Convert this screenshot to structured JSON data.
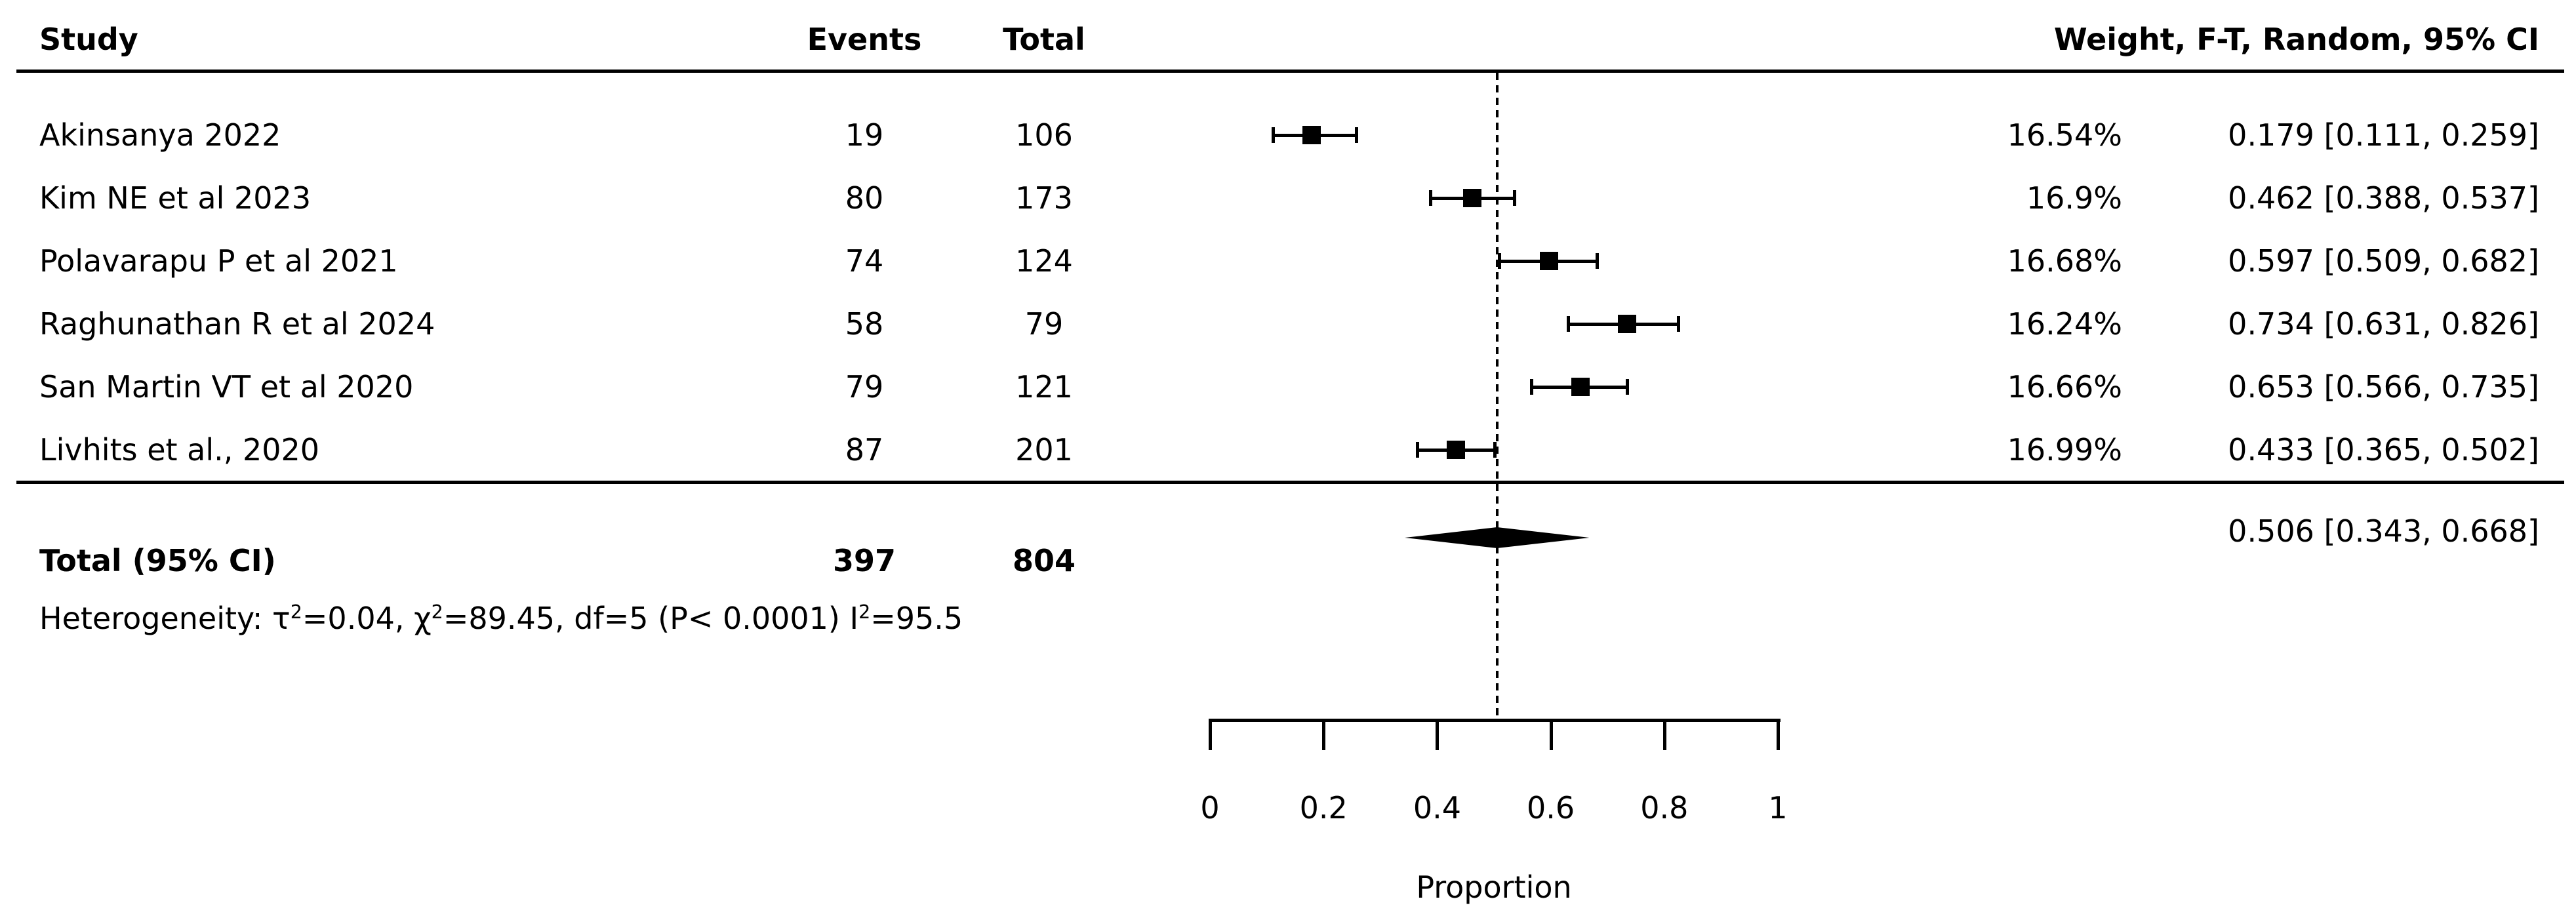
{
  "header": {
    "study": "Study",
    "events": "Events",
    "total": "Total",
    "weight_ci": "Weight, F-T, Random, 95% CI"
  },
  "heterogeneity_text": {
    "prefix": "Heterogeneity: τ",
    "sup1": "2",
    "seg2": "=0.04, χ",
    "sup2": "2",
    "seg3": "=89.45, df=5 (P< 0.0001) I",
    "sup3": "2",
    "seg4": "=95.5"
  },
  "chart_data": {
    "type": "scatter",
    "subtype": "forest-plot",
    "title": "",
    "xlabel": "Proportion",
    "xlim": [
      0,
      1
    ],
    "x_ticks": [
      0,
      0.2,
      0.4,
      0.6,
      0.8,
      1
    ],
    "x_tick_labels": [
      "0",
      "0.2",
      "0.4",
      "0.6",
      "0.8",
      "1"
    ],
    "reference_line": 0.506,
    "model_label": "Weight, F-T, Random, 95% CI",
    "studies": [
      {
        "name": "Akinsanya 2022",
        "events": "19",
        "total": "106",
        "weight_text": "16.54%",
        "proportion": 0.179,
        "ci_low": 0.111,
        "ci_high": 0.259,
        "ci_text": "0.179 [0.111, 0.259]"
      },
      {
        "name": "Kim NE et al 2023",
        "events": "80",
        "total": "173",
        "weight_text": "16.9%",
        "proportion": 0.462,
        "ci_low": 0.388,
        "ci_high": 0.537,
        "ci_text": "0.462 [0.388, 0.537]"
      },
      {
        "name": "Polavarapu P et al 2021",
        "events": "74",
        "total": "124",
        "weight_text": "16.68%",
        "proportion": 0.597,
        "ci_low": 0.509,
        "ci_high": 0.682,
        "ci_text": "0.597 [0.509, 0.682]"
      },
      {
        "name": "Raghunathan R et al 2024",
        "events": "58",
        "total": "79",
        "weight_text": "16.24%",
        "proportion": 0.734,
        "ci_low": 0.631,
        "ci_high": 0.826,
        "ci_text": "0.734 [0.631, 0.826]"
      },
      {
        "name": "San Martin VT et al 2020",
        "events": "79",
        "total": "121",
        "weight_text": "16.66%",
        "proportion": 0.653,
        "ci_low": 0.566,
        "ci_high": 0.735,
        "ci_text": "0.653 [0.566, 0.735]"
      },
      {
        "name": "Livhits et al., 2020",
        "events": "87",
        "total": "201",
        "weight_text": "16.99%",
        "proportion": 0.433,
        "ci_low": 0.365,
        "ci_high": 0.502,
        "ci_text": "0.433 [0.365, 0.502]"
      }
    ],
    "pooled": {
      "label": "Total (95% CI)",
      "events_text": "397",
      "total_text": "804",
      "proportion": 0.506,
      "ci_low": 0.343,
      "ci_high": 0.668,
      "ci_text": "0.506 [0.343, 0.668]"
    },
    "heterogeneity": {
      "tau2": 0.04,
      "chi2": 89.45,
      "df": 5,
      "p": "P< 0.0001",
      "I2": 95.5
    }
  }
}
